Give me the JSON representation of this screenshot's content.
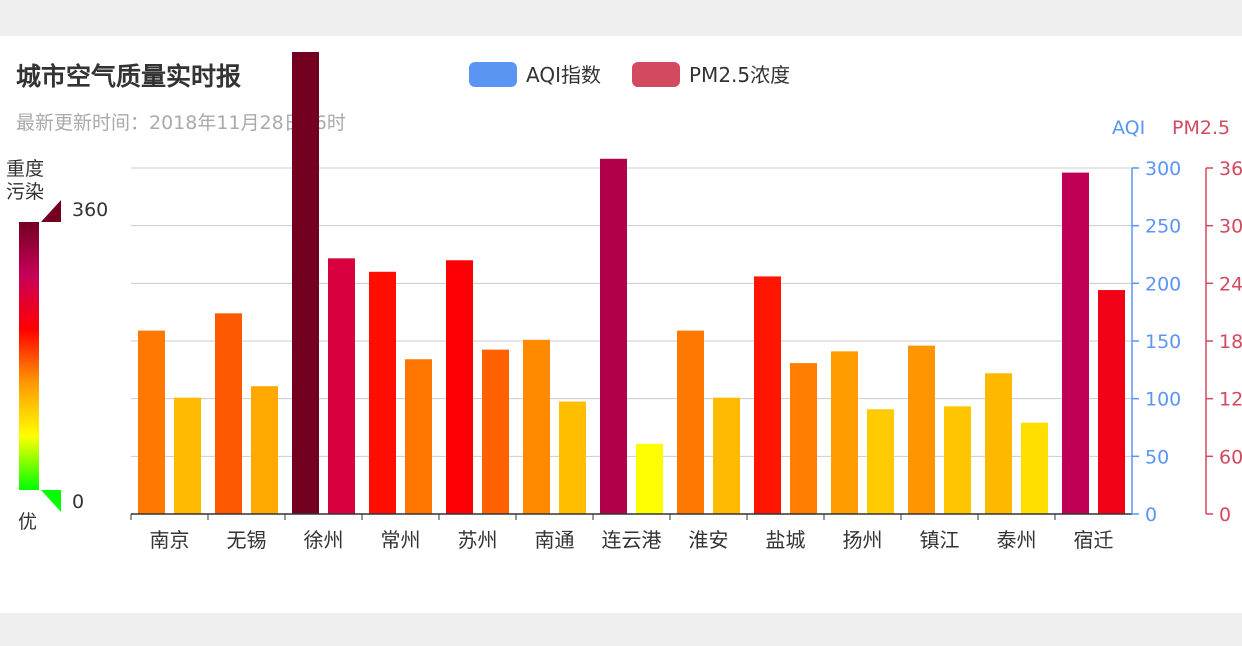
{
  "title": "城市空气质量实时报",
  "subtitle": "最新更新时间：2018年11月28日06时",
  "legend": [
    {
      "label": "AQI指数",
      "color": "#5b95f3"
    },
    {
      "label": "PM2.5浓度",
      "color": "#d3495f"
    }
  ],
  "visual_map": {
    "top_label": "重度\n污染",
    "bottom_label": "优",
    "max_label": "360",
    "min_label": "0",
    "max": 360,
    "min": 0,
    "gradient": [
      "#00ff00",
      "#ffff00",
      "#ff9900",
      "#ff0000",
      "#c8005a",
      "#730020"
    ]
  },
  "chart_data": {
    "type": "bar",
    "categories": [
      "南京",
      "无锡",
      "徐州",
      "常州",
      "苏州",
      "南通",
      "连云港",
      "淮安",
      "盐城",
      "扬州",
      "镇江",
      "泰州",
      "宿迁"
    ],
    "series": [
      {
        "name": "AQI指数",
        "axis": "AQI",
        "values": [
          159,
          174,
          413,
          210,
          220,
          151,
          308,
          159,
          206,
          141,
          146,
          122,
          296
        ]
      },
      {
        "name": "PM2.5浓度",
        "axis": "PM2.5",
        "values": [
          121,
          133,
          266,
          161,
          171,
          117,
          73,
          121,
          157,
          109,
          112,
          95,
          233
        ]
      }
    ],
    "y_axes": [
      {
        "name": "AQI",
        "color": "#5b95f3",
        "min": 0,
        "max": 300,
        "ticks": [
          "0",
          "50",
          "100",
          "150",
          "200",
          "250",
          "300"
        ]
      },
      {
        "name": "PM2.5",
        "color": "#d3495f",
        "min": 0,
        "max": 360,
        "ticks": [
          "0",
          "60",
          "120",
          "180",
          "240",
          "300",
          "360"
        ]
      }
    ],
    "grid": true
  }
}
